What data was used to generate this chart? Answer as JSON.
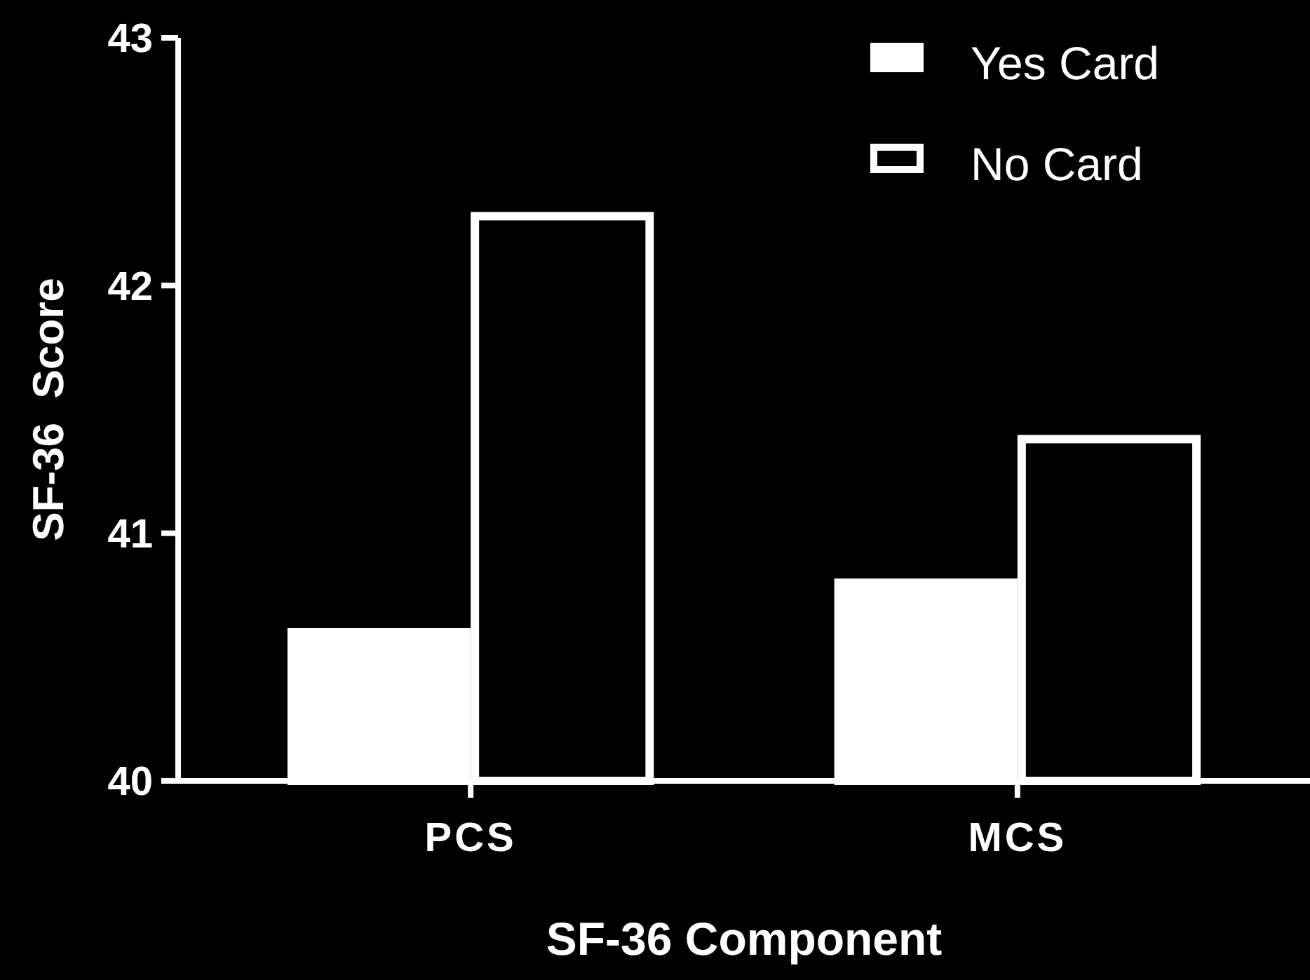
{
  "chart_data": {
    "type": "bar",
    "xlabel": "SF-36 Component",
    "ylabel": "SF-36  Score",
    "categories": [
      "PCS",
      "MCS"
    ],
    "series": [
      {
        "name": "Yes Card",
        "color": "#ffffff",
        "values": [
          40.6,
          40.8
        ]
      },
      {
        "name": "No Card",
        "color": "#000000",
        "values": [
          42.28,
          41.38
        ]
      }
    ],
    "ylim": [
      40,
      43
    ],
    "yticks": [
      40,
      41,
      42,
      43
    ],
    "grid": false,
    "legend": "top right"
  }
}
